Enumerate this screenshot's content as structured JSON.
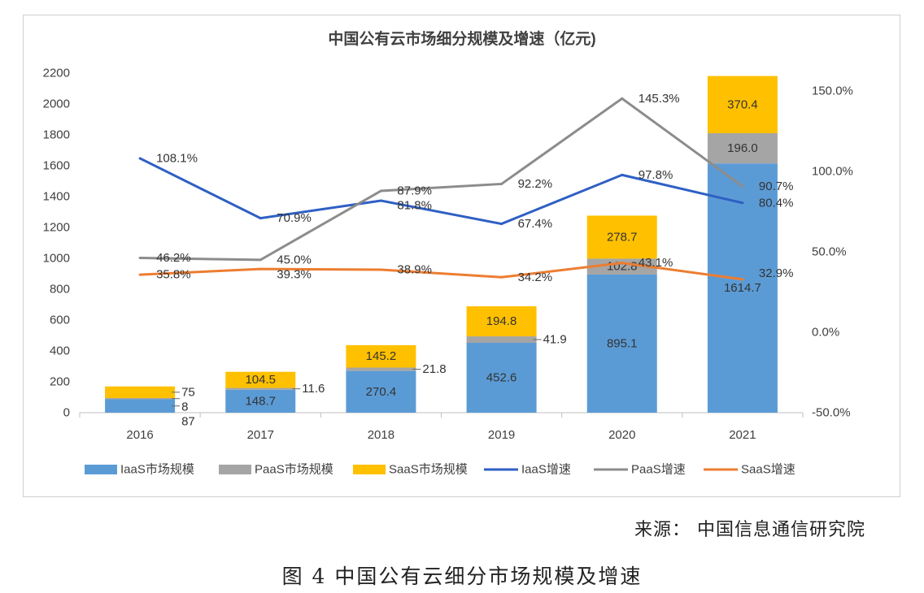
{
  "chart_data": {
    "type": "bar",
    "title": "中国公有云市场细分规模及增速（亿元)",
    "categories": [
      "2016",
      "2017",
      "2018",
      "2019",
      "2020",
      "2021"
    ],
    "y_left": {
      "ylim": [
        0,
        2200
      ],
      "ticks": [
        "0",
        "200",
        "400",
        "600",
        "800",
        "1000",
        "1200",
        "1400",
        "1600",
        "1800",
        "2000",
        "2200"
      ]
    },
    "y_right": {
      "ylim": [
        -50,
        150
      ],
      "ticks": [
        "-50.0%",
        "0.0%",
        "50.0%",
        "100.0%",
        "150.0%"
      ]
    },
    "stacked_bars": [
      {
        "name": "IaaS市场规模",
        "color": "#5b9bd5",
        "values": [
          87,
          148.7,
          270.4,
          452.6,
          895.1,
          1614.7
        ],
        "labels": [
          "87",
          "148.7",
          "270.4",
          "452.6",
          "895.1",
          "1614.7"
        ]
      },
      {
        "name": "PaaS市场规模",
        "color": "#a5a5a5",
        "values": [
          8,
          11.6,
          21.8,
          41.9,
          102.8,
          196.0
        ],
        "labels": [
          "8",
          "11.6",
          "21.8",
          "41.9",
          "102.8",
          "196.0"
        ]
      },
      {
        "name": "SaaS市场规模",
        "color": "#ffc000",
        "values": [
          75,
          104.5,
          145.2,
          194.8,
          278.7,
          370.4
        ],
        "labels": [
          "75",
          "104.5",
          "145.2",
          "194.8",
          "278.7",
          "370.4"
        ]
      }
    ],
    "lines": [
      {
        "name": "IaaS增速",
        "color": "#2e5fc4",
        "values": [
          108.1,
          70.9,
          81.8,
          67.4,
          97.8,
          80.4
        ],
        "labels": [
          "108.1%",
          "70.9%",
          "81.8%",
          "67.4%",
          "97.8%",
          "80.4%"
        ]
      },
      {
        "name": "PaaS增速",
        "color": "#8c8c8c",
        "values": [
          46.2,
          45.0,
          87.9,
          92.2,
          145.3,
          90.7
        ],
        "labels": [
          "46.2%",
          "45.0%",
          "87.9%",
          "92.2%",
          "145.3%",
          "90.7%"
        ]
      },
      {
        "name": "SaaS增速",
        "color": "#ed7d31",
        "values": [
          35.8,
          39.3,
          38.9,
          34.2,
          43.1,
          32.9
        ],
        "labels": [
          "35.8%",
          "39.3%",
          "38.9%",
          "34.2%",
          "43.1%",
          "32.9%"
        ]
      }
    ],
    "legend_position": "bottom",
    "grid": false
  },
  "source": "来源：  中国信息通信研究院",
  "caption": "图 4  中国公有云细分市场规模及增速"
}
